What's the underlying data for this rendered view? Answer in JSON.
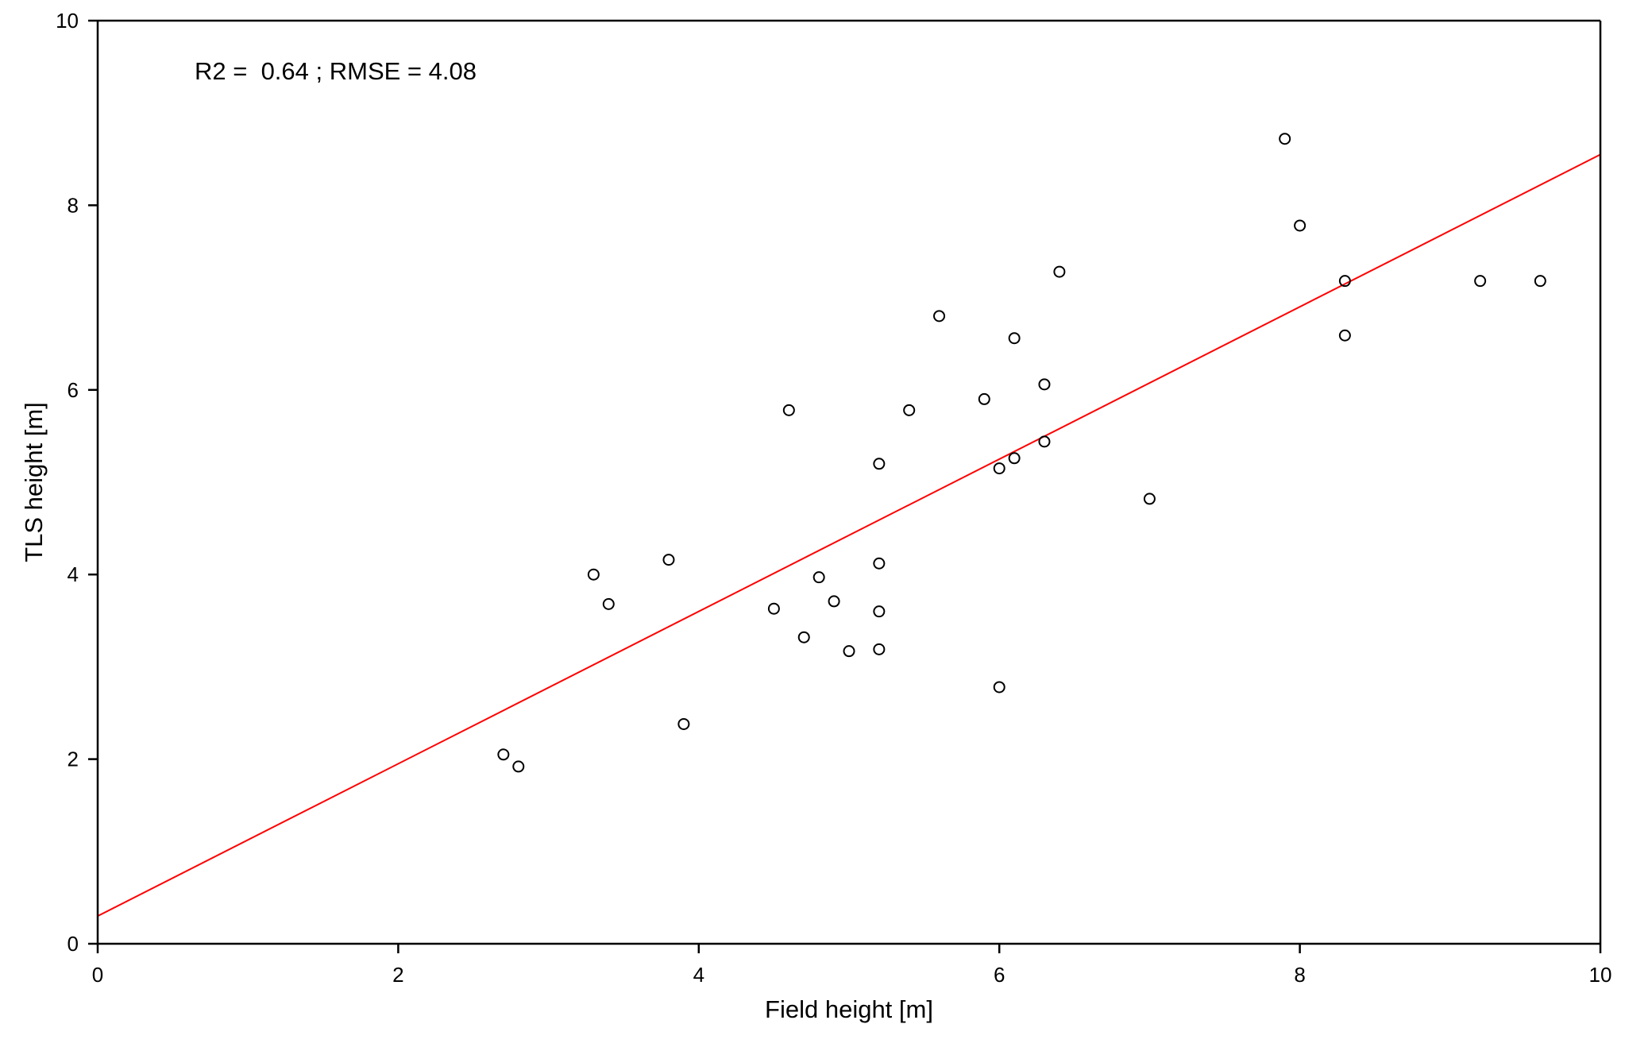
{
  "chart_data": {
    "type": "scatter",
    "xlabel": "Field height [m]",
    "ylabel": "TLS height [m]",
    "xlim": [
      0,
      10
    ],
    "ylim": [
      0,
      10
    ],
    "xticks": [
      "0",
      "2",
      "4",
      "6",
      "8",
      "10"
    ],
    "yticks": [
      "0",
      "2",
      "4",
      "6",
      "8",
      "10"
    ],
    "grid": false,
    "annotation": "R2 =  0.64 ; RMSE = 4.08",
    "points": [
      {
        "x": 2.7,
        "y": 2.05
      },
      {
        "x": 2.8,
        "y": 1.92
      },
      {
        "x": 3.3,
        "y": 4.0
      },
      {
        "x": 3.4,
        "y": 3.68
      },
      {
        "x": 3.8,
        "y": 4.16
      },
      {
        "x": 3.9,
        "y": 2.38
      },
      {
        "x": 4.5,
        "y": 3.63
      },
      {
        "x": 4.6,
        "y": 5.78
      },
      {
        "x": 4.7,
        "y": 3.32
      },
      {
        "x": 4.8,
        "y": 3.97
      },
      {
        "x": 4.9,
        "y": 3.71
      },
      {
        "x": 5.0,
        "y": 3.17
      },
      {
        "x": 5.2,
        "y": 5.2
      },
      {
        "x": 5.2,
        "y": 4.12
      },
      {
        "x": 5.2,
        "y": 3.6
      },
      {
        "x": 5.2,
        "y": 3.19
      },
      {
        "x": 5.4,
        "y": 5.78
      },
      {
        "x": 5.6,
        "y": 6.8
      },
      {
        "x": 5.9,
        "y": 5.9
      },
      {
        "x": 6.0,
        "y": 5.15
      },
      {
        "x": 6.0,
        "y": 2.78
      },
      {
        "x": 6.1,
        "y": 6.56
      },
      {
        "x": 6.1,
        "y": 5.26
      },
      {
        "x": 6.3,
        "y": 6.06
      },
      {
        "x": 6.3,
        "y": 5.44
      },
      {
        "x": 6.4,
        "y": 7.28
      },
      {
        "x": 7.0,
        "y": 4.82
      },
      {
        "x": 7.9,
        "y": 8.72
      },
      {
        "x": 8.0,
        "y": 7.78
      },
      {
        "x": 8.3,
        "y": 7.18
      },
      {
        "x": 8.3,
        "y": 6.59
      },
      {
        "x": 9.2,
        "y": 7.18
      },
      {
        "x": 9.6,
        "y": 7.18
      }
    ],
    "fit_line": {
      "x": [
        0,
        10
      ],
      "y": [
        0.3,
        8.55
      ],
      "color": "#ff0000"
    },
    "colors": {
      "points": "#000000",
      "axes": "#000000"
    }
  }
}
